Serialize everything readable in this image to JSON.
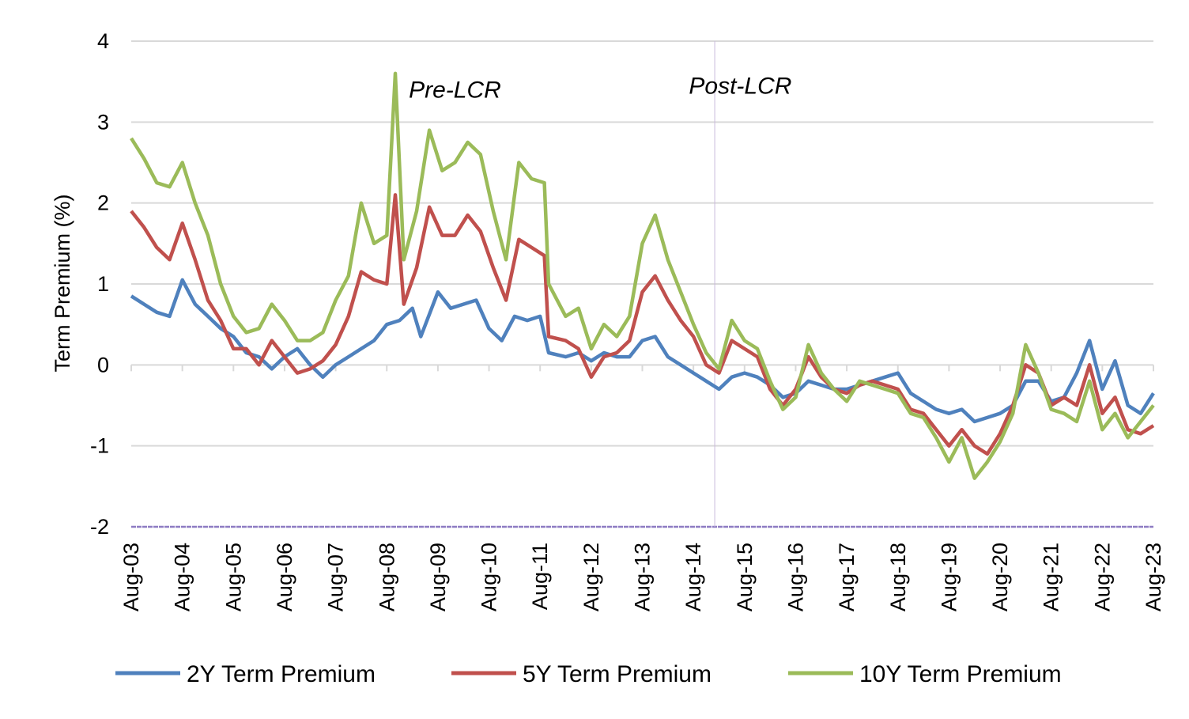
{
  "chart_data": {
    "type": "line",
    "title": "",
    "xlabel": "",
    "ylabel": "Term Premium (%)",
    "ylim": [
      -2,
      4
    ],
    "yticks": [
      "4",
      "3",
      "2",
      "1",
      "0",
      "-1",
      "-2"
    ],
    "ytick_values": [
      4,
      3,
      2,
      1,
      0,
      -1,
      -2
    ],
    "xlim": [
      "2003-08",
      "2023-08"
    ],
    "xticks": [
      "Aug-03",
      "Aug-04",
      "Aug-05",
      "Aug-06",
      "Aug-07",
      "Aug-08",
      "Aug-09",
      "Aug-10",
      "Aug-11",
      "Aug-12",
      "Aug-13",
      "Aug-14",
      "Aug-15",
      "Aug-16",
      "Aug-17",
      "Aug-18",
      "Aug-19",
      "Aug-20",
      "Aug-21",
      "Aug-22",
      "Aug-23"
    ],
    "grid": true,
    "legend_position": "bottom",
    "vertical_marker": {
      "date": "2015-01",
      "color": "#c9b8dc"
    },
    "annotations": [
      {
        "text": "Pre-LCR",
        "date": "2009-12",
        "y": 3.4
      },
      {
        "text": "Post-LCR",
        "date": "2015-07",
        "y": 3.45
      }
    ],
    "series": [
      {
        "name": "2Y Term Premium",
        "color": "#4f81bd",
        "points": [
          [
            "2003-08",
            0.85
          ],
          [
            "2003-11",
            0.75
          ],
          [
            "2004-02",
            0.65
          ],
          [
            "2004-05",
            0.6
          ],
          [
            "2004-08",
            1.05
          ],
          [
            "2004-11",
            0.75
          ],
          [
            "2005-02",
            0.6
          ],
          [
            "2005-05",
            0.45
          ],
          [
            "2005-08",
            0.35
          ],
          [
            "2005-11",
            0.15
          ],
          [
            "2006-02",
            0.1
          ],
          [
            "2006-05",
            -0.05
          ],
          [
            "2006-08",
            0.1
          ],
          [
            "2006-11",
            0.2
          ],
          [
            "2007-02",
            0.0
          ],
          [
            "2007-05",
            -0.15
          ],
          [
            "2007-08",
            0.0
          ],
          [
            "2007-11",
            0.1
          ],
          [
            "2008-02",
            0.2
          ],
          [
            "2008-05",
            0.3
          ],
          [
            "2008-08",
            0.5
          ],
          [
            "2008-11",
            0.55
          ],
          [
            "2009-02",
            0.7
          ],
          [
            "2009-04",
            0.35
          ],
          [
            "2009-08",
            0.9
          ],
          [
            "2009-11",
            0.7
          ],
          [
            "2010-02",
            0.75
          ],
          [
            "2010-05",
            0.8
          ],
          [
            "2010-08",
            0.45
          ],
          [
            "2010-11",
            0.3
          ],
          [
            "2011-02",
            0.6
          ],
          [
            "2011-05",
            0.55
          ],
          [
            "2011-08",
            0.6
          ],
          [
            "2011-10",
            0.15
          ],
          [
            "2012-02",
            0.1
          ],
          [
            "2012-05",
            0.15
          ],
          [
            "2012-08",
            0.05
          ],
          [
            "2012-11",
            0.15
          ],
          [
            "2013-02",
            0.1
          ],
          [
            "2013-05",
            0.1
          ],
          [
            "2013-08",
            0.3
          ],
          [
            "2013-11",
            0.35
          ],
          [
            "2014-02",
            0.1
          ],
          [
            "2014-05",
            0.0
          ],
          [
            "2014-08",
            -0.1
          ],
          [
            "2014-11",
            -0.2
          ],
          [
            "2015-02",
            -0.3
          ],
          [
            "2015-05",
            -0.15
          ],
          [
            "2015-08",
            -0.1
          ],
          [
            "2015-11",
            -0.15
          ],
          [
            "2016-02",
            -0.25
          ],
          [
            "2016-05",
            -0.4
          ],
          [
            "2016-08",
            -0.35
          ],
          [
            "2016-11",
            -0.2
          ],
          [
            "2017-02",
            -0.25
          ],
          [
            "2017-05",
            -0.3
          ],
          [
            "2017-08",
            -0.3
          ],
          [
            "2017-11",
            -0.25
          ],
          [
            "2018-02",
            -0.2
          ],
          [
            "2018-05",
            -0.15
          ],
          [
            "2018-08",
            -0.1
          ],
          [
            "2018-11",
            -0.35
          ],
          [
            "2019-02",
            -0.45
          ],
          [
            "2019-05",
            -0.55
          ],
          [
            "2019-08",
            -0.6
          ],
          [
            "2019-11",
            -0.55
          ],
          [
            "2020-02",
            -0.7
          ],
          [
            "2020-05",
            -0.65
          ],
          [
            "2020-08",
            -0.6
          ],
          [
            "2020-11",
            -0.5
          ],
          [
            "2021-02",
            -0.2
          ],
          [
            "2021-05",
            -0.2
          ],
          [
            "2021-08",
            -0.45
          ],
          [
            "2021-11",
            -0.4
          ],
          [
            "2022-02",
            -0.1
          ],
          [
            "2022-05",
            0.3
          ],
          [
            "2022-08",
            -0.3
          ],
          [
            "2022-11",
            0.05
          ],
          [
            "2023-02",
            -0.5
          ],
          [
            "2023-05",
            -0.6
          ],
          [
            "2023-08",
            -0.35
          ]
        ]
      },
      {
        "name": "5Y Term Premium",
        "color": "#c0504d",
        "points": [
          [
            "2003-08",
            1.9
          ],
          [
            "2003-11",
            1.7
          ],
          [
            "2004-02",
            1.45
          ],
          [
            "2004-05",
            1.3
          ],
          [
            "2004-08",
            1.75
          ],
          [
            "2004-11",
            1.3
          ],
          [
            "2005-02",
            0.8
          ],
          [
            "2005-05",
            0.55
          ],
          [
            "2005-08",
            0.2
          ],
          [
            "2005-11",
            0.2
          ],
          [
            "2006-02",
            0.0
          ],
          [
            "2006-05",
            0.3
          ],
          [
            "2006-08",
            0.1
          ],
          [
            "2006-11",
            -0.1
          ],
          [
            "2007-02",
            -0.05
          ],
          [
            "2007-05",
            0.05
          ],
          [
            "2007-08",
            0.25
          ],
          [
            "2007-11",
            0.6
          ],
          [
            "2008-02",
            1.15
          ],
          [
            "2008-05",
            1.05
          ],
          [
            "2008-08",
            1.0
          ],
          [
            "2008-10",
            2.1
          ],
          [
            "2008-12",
            0.75
          ],
          [
            "2009-03",
            1.2
          ],
          [
            "2009-06",
            1.95
          ],
          [
            "2009-09",
            1.6
          ],
          [
            "2009-12",
            1.6
          ],
          [
            "2010-03",
            1.85
          ],
          [
            "2010-06",
            1.65
          ],
          [
            "2010-09",
            1.2
          ],
          [
            "2010-12",
            0.8
          ],
          [
            "2011-03",
            1.55
          ],
          [
            "2011-06",
            1.45
          ],
          [
            "2011-09",
            1.35
          ],
          [
            "2011-10",
            0.35
          ],
          [
            "2012-02",
            0.3
          ],
          [
            "2012-05",
            0.2
          ],
          [
            "2012-08",
            -0.15
          ],
          [
            "2012-11",
            0.1
          ],
          [
            "2013-02",
            0.15
          ],
          [
            "2013-05",
            0.3
          ],
          [
            "2013-08",
            0.9
          ],
          [
            "2013-11",
            1.1
          ],
          [
            "2014-02",
            0.8
          ],
          [
            "2014-05",
            0.55
          ],
          [
            "2014-08",
            0.35
          ],
          [
            "2014-11",
            0.0
          ],
          [
            "2015-02",
            -0.1
          ],
          [
            "2015-05",
            0.3
          ],
          [
            "2015-08",
            0.2
          ],
          [
            "2015-11",
            0.1
          ],
          [
            "2016-02",
            -0.3
          ],
          [
            "2016-05",
            -0.5
          ],
          [
            "2016-08",
            -0.3
          ],
          [
            "2016-11",
            0.1
          ],
          [
            "2017-02",
            -0.15
          ],
          [
            "2017-05",
            -0.3
          ],
          [
            "2017-08",
            -0.35
          ],
          [
            "2017-11",
            -0.25
          ],
          [
            "2018-02",
            -0.2
          ],
          [
            "2018-05",
            -0.25
          ],
          [
            "2018-08",
            -0.3
          ],
          [
            "2018-11",
            -0.55
          ],
          [
            "2019-02",
            -0.6
          ],
          [
            "2019-05",
            -0.8
          ],
          [
            "2019-08",
            -1.0
          ],
          [
            "2019-11",
            -0.8
          ],
          [
            "2020-02",
            -1.0
          ],
          [
            "2020-05",
            -1.1
          ],
          [
            "2020-08",
            -0.85
          ],
          [
            "2020-11",
            -0.5
          ],
          [
            "2021-02",
            0.0
          ],
          [
            "2021-05",
            -0.1
          ],
          [
            "2021-08",
            -0.5
          ],
          [
            "2021-11",
            -0.4
          ],
          [
            "2022-02",
            -0.5
          ],
          [
            "2022-05",
            0.0
          ],
          [
            "2022-08",
            -0.6
          ],
          [
            "2022-11",
            -0.4
          ],
          [
            "2023-02",
            -0.8
          ],
          [
            "2023-05",
            -0.85
          ],
          [
            "2023-08",
            -0.75
          ]
        ]
      },
      {
        "name": "10Y Term Premium",
        "color": "#9bbb59",
        "points": [
          [
            "2003-08",
            2.8
          ],
          [
            "2003-11",
            2.55
          ],
          [
            "2004-02",
            2.25
          ],
          [
            "2004-05",
            2.2
          ],
          [
            "2004-08",
            2.5
          ],
          [
            "2004-11",
            2.0
          ],
          [
            "2005-02",
            1.6
          ],
          [
            "2005-05",
            1.0
          ],
          [
            "2005-08",
            0.6
          ],
          [
            "2005-11",
            0.4
          ],
          [
            "2006-02",
            0.45
          ],
          [
            "2006-05",
            0.75
          ],
          [
            "2006-08",
            0.55
          ],
          [
            "2006-11",
            0.3
          ],
          [
            "2007-02",
            0.3
          ],
          [
            "2007-05",
            0.4
          ],
          [
            "2007-08",
            0.8
          ],
          [
            "2007-11",
            1.1
          ],
          [
            "2008-02",
            2.0
          ],
          [
            "2008-05",
            1.5
          ],
          [
            "2008-08",
            1.6
          ],
          [
            "2008-10",
            3.6
          ],
          [
            "2008-12",
            1.3
          ],
          [
            "2009-03",
            1.9
          ],
          [
            "2009-06",
            2.9
          ],
          [
            "2009-09",
            2.4
          ],
          [
            "2009-12",
            2.5
          ],
          [
            "2010-03",
            2.75
          ],
          [
            "2010-06",
            2.6
          ],
          [
            "2010-09",
            1.9
          ],
          [
            "2010-12",
            1.3
          ],
          [
            "2011-03",
            2.5
          ],
          [
            "2011-06",
            2.3
          ],
          [
            "2011-09",
            2.25
          ],
          [
            "2011-10",
            1.0
          ],
          [
            "2012-02",
            0.6
          ],
          [
            "2012-05",
            0.7
          ],
          [
            "2012-08",
            0.2
          ],
          [
            "2012-11",
            0.5
          ],
          [
            "2013-02",
            0.35
          ],
          [
            "2013-05",
            0.6
          ],
          [
            "2013-08",
            1.5
          ],
          [
            "2013-11",
            1.85
          ],
          [
            "2014-02",
            1.3
          ],
          [
            "2014-05",
            0.9
          ],
          [
            "2014-08",
            0.5
          ],
          [
            "2014-11",
            0.15
          ],
          [
            "2015-02",
            -0.05
          ],
          [
            "2015-05",
            0.55
          ],
          [
            "2015-08",
            0.3
          ],
          [
            "2015-11",
            0.2
          ],
          [
            "2016-02",
            -0.2
          ],
          [
            "2016-05",
            -0.55
          ],
          [
            "2016-08",
            -0.4
          ],
          [
            "2016-11",
            0.25
          ],
          [
            "2017-02",
            -0.1
          ],
          [
            "2017-05",
            -0.3
          ],
          [
            "2017-08",
            -0.45
          ],
          [
            "2017-11",
            -0.2
          ],
          [
            "2018-02",
            -0.25
          ],
          [
            "2018-05",
            -0.3
          ],
          [
            "2018-08",
            -0.35
          ],
          [
            "2018-11",
            -0.6
          ],
          [
            "2019-02",
            -0.65
          ],
          [
            "2019-05",
            -0.9
          ],
          [
            "2019-08",
            -1.2
          ],
          [
            "2019-11",
            -0.9
          ],
          [
            "2020-02",
            -1.4
          ],
          [
            "2020-05",
            -1.2
          ],
          [
            "2020-08",
            -0.95
          ],
          [
            "2020-11",
            -0.6
          ],
          [
            "2021-02",
            0.25
          ],
          [
            "2021-05",
            -0.1
          ],
          [
            "2021-08",
            -0.55
          ],
          [
            "2021-11",
            -0.6
          ],
          [
            "2022-02",
            -0.7
          ],
          [
            "2022-05",
            -0.2
          ],
          [
            "2022-08",
            -0.8
          ],
          [
            "2022-11",
            -0.6
          ],
          [
            "2023-02",
            -0.9
          ],
          [
            "2023-05",
            -0.7
          ],
          [
            "2023-08",
            -0.5
          ]
        ]
      }
    ]
  }
}
